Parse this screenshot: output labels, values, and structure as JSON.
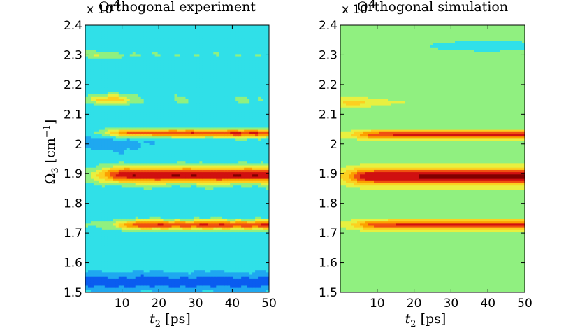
{
  "chart_data": [
    {
      "type": "heatmap",
      "subtype": "filled-contour",
      "title": "Orthogonal experiment",
      "xlabel_var": "t",
      "xlabel_sub": "2",
      "xlabel_unit": "[ps]",
      "ylabel_var": "Ω",
      "ylabel_sub": "3",
      "ylabel_unit": "[cm",
      "ylabel_exp": "−1",
      "ylabel_close": "]",
      "y_multiplier": "x 10",
      "y_multiplier_exp": "4",
      "xlim": [
        0,
        50
      ],
      "ylim": [
        1.5,
        2.4
      ],
      "xticks": [
        10,
        20,
        30,
        40,
        50
      ],
      "xtick_labels": [
        "10",
        "20",
        "30",
        "40",
        "50"
      ],
      "yticks": [
        1.5,
        1.6,
        1.7,
        1.8,
        1.9,
        2.0,
        2.1,
        2.2,
        2.3,
        2.4
      ],
      "ytick_labels": [
        "1.5",
        "1.6",
        "1.7",
        "1.8",
        "1.9",
        "2",
        "2.1",
        "2.2",
        "2.3",
        "2.4"
      ],
      "background_level": 3,
      "bands": [
        {
          "y": 1.895,
          "peak": 9,
          "xs": 2,
          "ys": 0.026,
          "w": 1.0
        },
        {
          "y": 1.727,
          "peak": 8,
          "xs": 9,
          "ys": 0.015,
          "w": 1.0
        },
        {
          "y": 2.035,
          "peak": 8,
          "xs": 6,
          "ys": 0.013,
          "w": 1.0
        },
        {
          "y": 2.15,
          "peak": 8,
          "xs": 0,
          "xe": 9,
          "ys": 0.016,
          "w": 1.0
        },
        {
          "y": 2.3,
          "peak": 8,
          "xs": 0,
          "xe": 3,
          "ys": 0.012,
          "w": 1.0
        }
      ],
      "cool_regions": [
        {
          "y": 1.535,
          "ys": 0.03,
          "level": 1
        },
        {
          "y": 2.0,
          "x": 2,
          "ys": 0.025,
          "level": 2
        }
      ],
      "palette": [
        "#0000c8",
        "#0a5cf0",
        "#1fa8f0",
        "#30e0e8",
        "#90f080",
        "#e8f040",
        "#fcd020",
        "#fca000",
        "#f05010",
        "#d01010",
        "#800000"
      ]
    },
    {
      "type": "heatmap",
      "subtype": "filled-contour",
      "title": "Orthogonal simulation",
      "xlabel_var": "t",
      "xlabel_sub": "2",
      "xlabel_unit": "[ps]",
      "y_multiplier": "x 10",
      "y_multiplier_exp": "4",
      "xlim": [
        0,
        50
      ],
      "ylim": [
        1.5,
        2.4
      ],
      "xticks": [
        10,
        20,
        30,
        40,
        50
      ],
      "xtick_labels": [
        "10",
        "20",
        "30",
        "40",
        "50"
      ],
      "yticks": [
        1.5,
        1.6,
        1.7,
        1.8,
        1.9,
        2.0,
        2.1,
        2.2,
        2.3,
        2.4
      ],
      "ytick_labels": [
        "1.5",
        "1.6",
        "1.7",
        "1.8",
        "1.9",
        "2",
        "2.1",
        "2.2",
        "2.3",
        "2.4"
      ],
      "background_level": 4,
      "bands": [
        {
          "y": 1.89,
          "peak": 9,
          "xs": 1,
          "ys": 0.028,
          "w": 1.0
        },
        {
          "y": 1.727,
          "peak": 8,
          "xs": 5,
          "ys": 0.016,
          "w": 1.0
        },
        {
          "y": 2.03,
          "peak": 8,
          "xs": 5,
          "ys": 0.014,
          "w": 1.0
        },
        {
          "y": 2.14,
          "peak": 8,
          "xs": 0,
          "xe": 4,
          "ys": 0.016,
          "w": 1.0
        }
      ],
      "cool_regions": [
        {
          "y": 2.33,
          "x": 40,
          "ys": 0.02,
          "level": 3
        },
        {
          "y": 2.13,
          "x": 40,
          "ys": 0.02,
          "level": 4
        }
      ],
      "palette": [
        "#0000c8",
        "#0a5cf0",
        "#1fa8f0",
        "#30e0e8",
        "#90f080",
        "#e8f040",
        "#fcd020",
        "#fca000",
        "#f05010",
        "#d01010",
        "#800000"
      ]
    }
  ]
}
